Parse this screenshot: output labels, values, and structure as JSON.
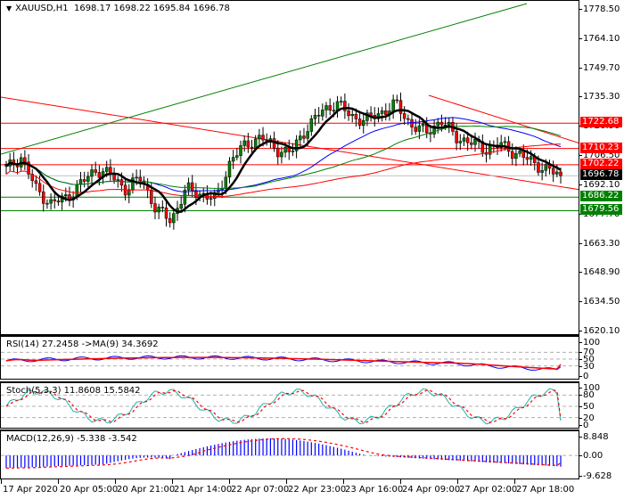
{
  "header": {
    "symbol": "XAUUSD,H1",
    "ohlc": "1698.17 1698.22 1695.84 1696.78",
    "open": 1698.17,
    "high": 1698.22,
    "low": 1695.84,
    "close": 1696.78
  },
  "price_axis": {
    "ticks": [
      "1778.50",
      "1764.10",
      "1749.70",
      "1735.30",
      "1720.90",
      "1706.50",
      "1692.10",
      "1677.70",
      "1663.30",
      "1648.90",
      "1634.50",
      "1620.10"
    ],
    "tags": [
      {
        "label": "1722.68",
        "color": "red"
      },
      {
        "label": "1710.23",
        "color": "red"
      },
      {
        "label": "1702.22",
        "color": "red"
      },
      {
        "label": "1696.78",
        "color": "black"
      },
      {
        "label": "1686.22",
        "color": "green"
      },
      {
        "label": "1679.56",
        "color": "green"
      }
    ]
  },
  "rsi": {
    "title": "RSI(14) 27.2458  ->MA(9) 34.3692",
    "ticks": [
      "100",
      "70",
      "50",
      "30",
      "0"
    ]
  },
  "stoch": {
    "title": "Stoch(5,3,3) 11.8608 15.5842",
    "ticks": [
      "100",
      "80",
      "50",
      "20",
      "0"
    ]
  },
  "macd": {
    "title": "MACD(12,26,9) -5.338 -3.542",
    "ticks": [
      "8.848",
      "0.00",
      "-9.628"
    ]
  },
  "time_axis": {
    "labels": [
      "17 Apr 2020",
      "20 Apr 05:00",
      "20 Apr 21:00",
      "21 Apr 14:00",
      "22 Apr 07:00",
      "22 Apr 23:00",
      "23 Apr 16:00",
      "24 Apr 09:00",
      "27 Apr 02:00",
      "27 Apr 18:00"
    ]
  },
  "colors": {
    "bull": "#008000",
    "bear": "#ff0000",
    "ma_fast": "#000000",
    "ma_mid": "#0000ff",
    "ma_slow": "#008000",
    "ma_long": "#ff0000",
    "rsi": "#0000ff",
    "rsi_ma": "#ff0000",
    "stoch_main": "#20b2aa",
    "stoch_signal": "#ff0000",
    "macd_hist": "#0000ff",
    "macd_signal": "#ff0000"
  },
  "chart_data": [
    {
      "type": "candlestick",
      "title": "XAUUSD,H1",
      "ylim": [
        1620.1,
        1778.5
      ],
      "x_labels": [
        "17 Apr 2020",
        "20 Apr 05:00",
        "20 Apr 21:00",
        "21 Apr 14:00",
        "22 Apr 07:00",
        "22 Apr 23:00",
        "23 Apr 16:00",
        "24 Apr 09:00",
        "27 Apr 02:00",
        "27 Apr 18:00"
      ],
      "last": {
        "open": 1698.17,
        "high": 1698.22,
        "low": 1695.84,
        "close": 1696.78
      },
      "horizontal_levels": [
        {
          "value": 1722.68,
          "color": "red"
        },
        {
          "value": 1710.23,
          "color": "red"
        },
        {
          "value": 1702.22,
          "color": "red"
        },
        {
          "value": 1686.22,
          "color": "green"
        },
        {
          "value": 1679.56,
          "color": "green"
        }
      ],
      "approx_close_path": [
        1700,
        1706,
        1690,
        1683,
        1686,
        1693,
        1700,
        1697,
        1690,
        1696,
        1680,
        1675,
        1690,
        1688,
        1685,
        1705,
        1712,
        1716,
        1710,
        1708,
        1720,
        1728,
        1733,
        1726,
        1724,
        1728,
        1732,
        1722,
        1718,
        1724,
        1716,
        1713,
        1710,
        1712,
        1708,
        1704,
        1700,
        1696.78
      ]
    },
    {
      "type": "line",
      "title": "RSI(14)",
      "ylim": [
        0,
        100
      ],
      "series": [
        {
          "name": "RSI(14)",
          "last": 27.2458
        },
        {
          "name": "MA(9)",
          "last": 34.3692
        }
      ],
      "levels": [
        70,
        50,
        30
      ]
    },
    {
      "type": "line",
      "title": "Stoch(5,3,3)",
      "ylim": [
        0,
        100
      ],
      "series": [
        {
          "name": "%K",
          "last": 11.8608
        },
        {
          "name": "%D",
          "last": 15.5842
        }
      ],
      "levels": [
        80,
        50,
        20
      ]
    },
    {
      "type": "bar",
      "title": "MACD(12,26,9)",
      "ylim": [
        -9.628,
        8.848
      ],
      "series": [
        {
          "name": "MACD",
          "last": -5.338
        },
        {
          "name": "Signal",
          "last": -3.542
        }
      ]
    }
  ]
}
